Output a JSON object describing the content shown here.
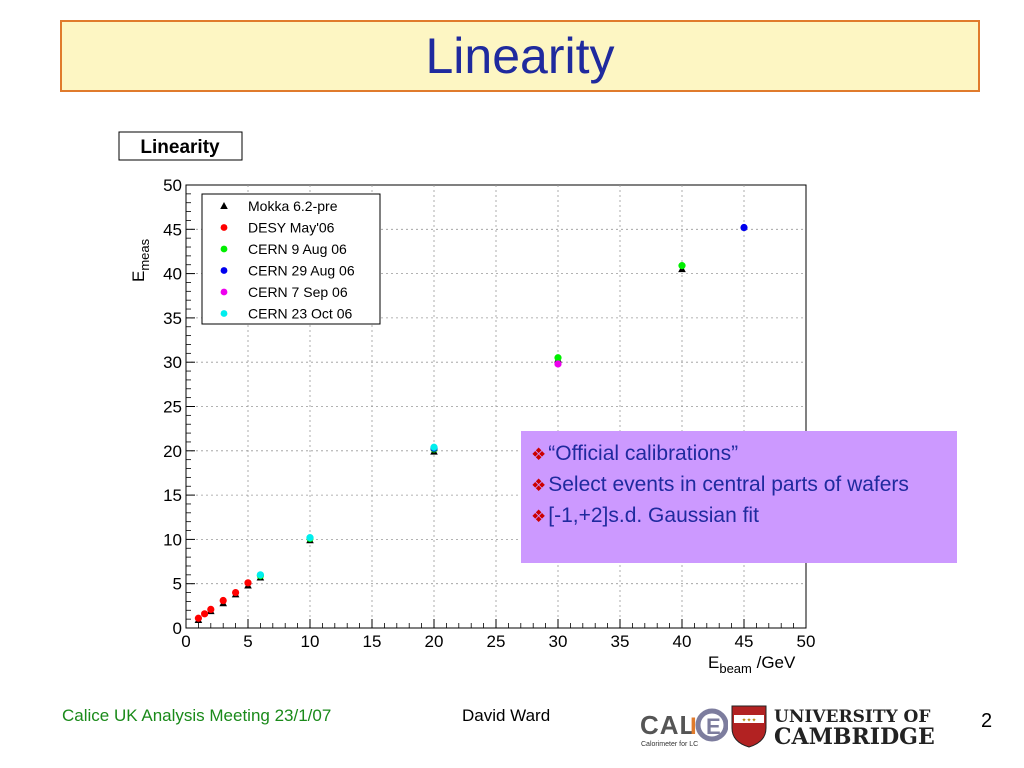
{
  "slide": {
    "title": "Linearity",
    "footer_left": "Calice UK Analysis Meeting 23/1/07",
    "footer_center": "David Ward",
    "page_number": "2",
    "logos": {
      "calice_text": "CALICE",
      "calice_sub": "Calorimeter for LC",
      "cambridge_line1": "UNIVERSITY OF",
      "cambridge_line2": "CAMBRIDGE"
    },
    "callout": {
      "bullets": [
        "“Official calibrations”",
        "Select events in central parts of wafers",
        "[-1,+2]s.d. Gaussian fit"
      ],
      "bullet_glyph": "❖"
    }
  },
  "chart_data": {
    "type": "scatter",
    "title": "Linearity",
    "xlabel_main": "E",
    "xlabel_sub": "beam",
    "xlabel_unit": " /GeV",
    "ylabel_main": "E",
    "ylabel_sub": "meas",
    "xlim": [
      0,
      50
    ],
    "ylim": [
      0,
      50
    ],
    "xticks": [
      0,
      5,
      10,
      15,
      20,
      25,
      30,
      35,
      40,
      45,
      50
    ],
    "yticks": [
      0,
      5,
      10,
      15,
      20,
      25,
      30,
      35,
      40,
      45,
      50
    ],
    "grid": true,
    "legend_position": "top-left",
    "series": [
      {
        "name": "Mokka 6.2-pre",
        "marker": "triangle",
        "color": "#000000",
        "x": [
          1,
          2,
          3,
          4,
          5,
          6,
          10,
          20,
          30,
          40
        ],
        "y": [
          0.9,
          1.9,
          2.8,
          3.8,
          4.8,
          5.7,
          9.9,
          19.9,
          30.3,
          40.5
        ]
      },
      {
        "name": "DESY May'06",
        "marker": "circle",
        "color": "#ff0000",
        "x": [
          1,
          1.5,
          2,
          3,
          4,
          5
        ],
        "y": [
          1.1,
          1.6,
          2.1,
          3.1,
          4.0,
          5.1
        ]
      },
      {
        "name": "CERN 9 Aug 06",
        "marker": "circle",
        "color": "#00ee00",
        "x": [
          6,
          10,
          20,
          30,
          40
        ],
        "y": [
          5.9,
          10.1,
          20.2,
          30.5,
          40.9
        ]
      },
      {
        "name": "CERN 29 Aug 06",
        "marker": "circle",
        "color": "#0000ee",
        "x": [
          20,
          45
        ],
        "y": [
          20.3,
          45.2
        ]
      },
      {
        "name": "CERN 7 Sep 06",
        "marker": "circle",
        "color": "#ee00ee",
        "x": [
          30
        ],
        "y": [
          29.8
        ]
      },
      {
        "name": "CERN 23 Oct 06",
        "marker": "circle",
        "color": "#00eeee",
        "x": [
          6,
          10,
          20
        ],
        "y": [
          6.0,
          10.2,
          20.4
        ]
      }
    ]
  }
}
